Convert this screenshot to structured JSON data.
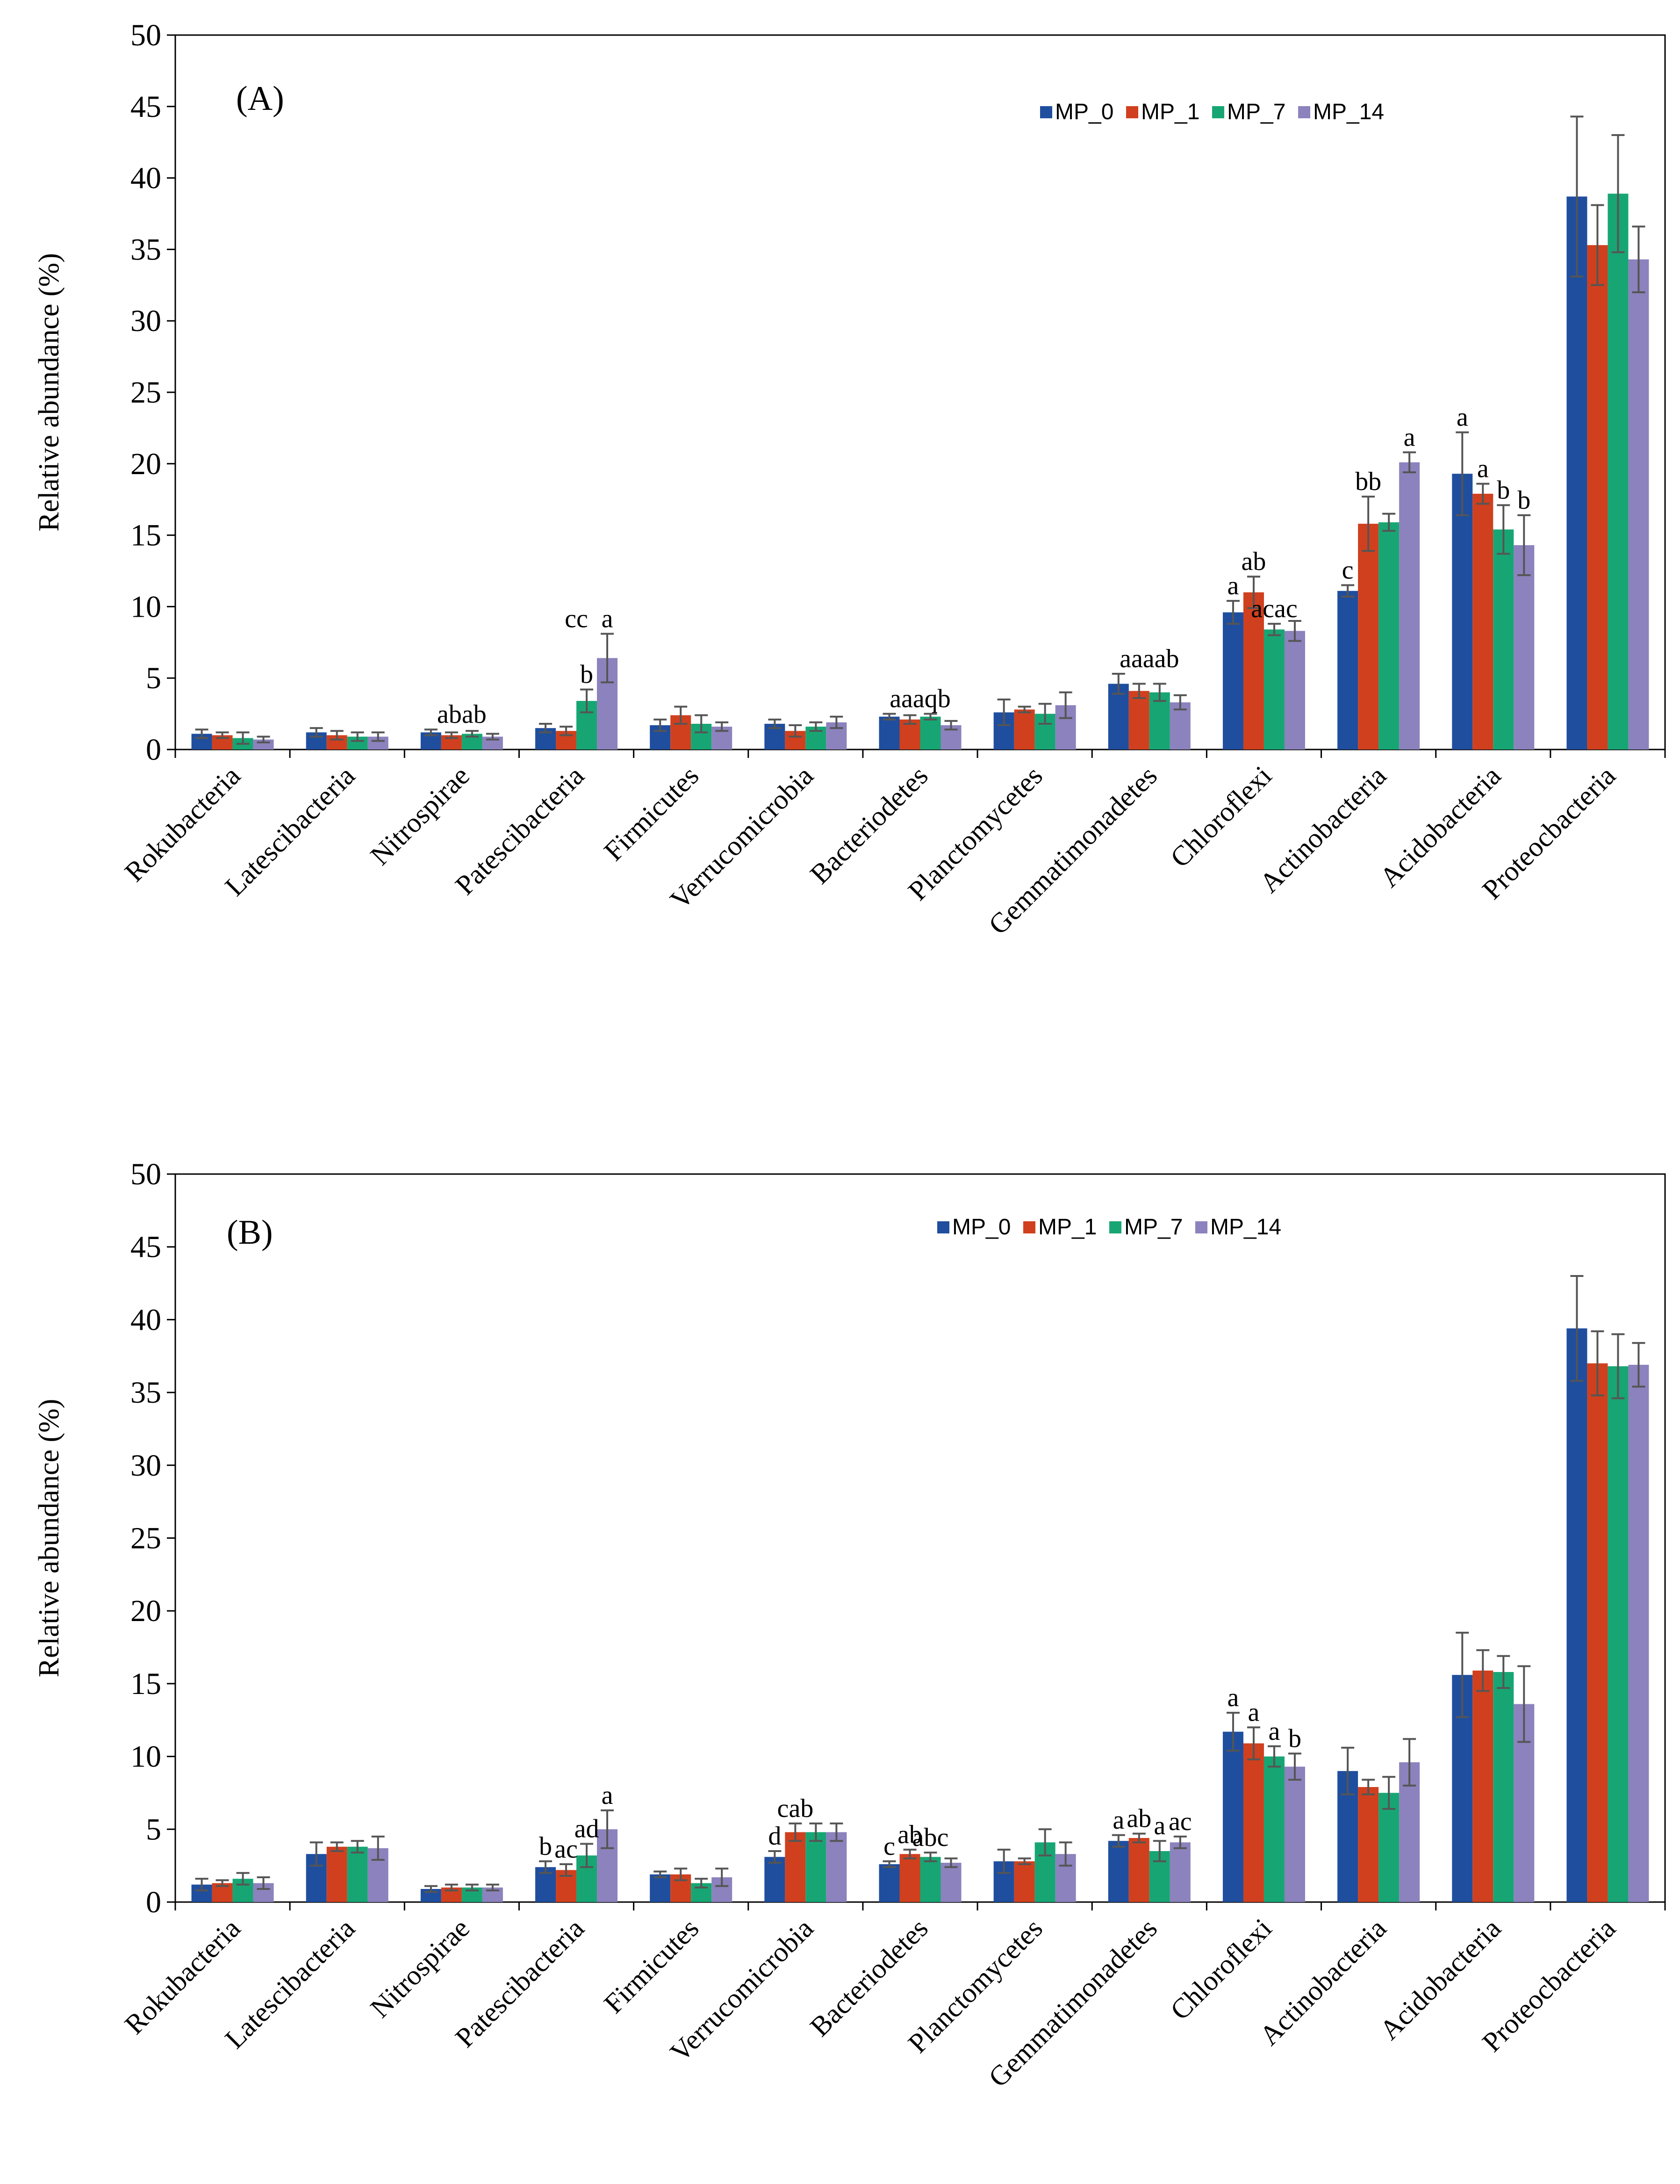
{
  "series_colors": [
    "#1f4e9e",
    "#d0401e",
    "#17a673",
    "#8c82bd"
  ],
  "chart_data": [
    {
      "type": "bar",
      "panel": "(A)",
      "ylabel": "Relative abundance (%)",
      "ylim": [
        0,
        50
      ],
      "yticks": [
        0,
        5,
        10,
        15,
        20,
        25,
        30,
        35,
        40,
        45,
        50
      ],
      "legend_position": "top-right",
      "categories": [
        "Rokubacteria",
        "Latescibacteria",
        "Nitrospirae",
        "Patescibacteria",
        "Firmicutes",
        "Verrucomicrobia",
        "Bacteriodetes",
        "Planctomycetes",
        "Gemmatimonadetes",
        "Chloroflexi",
        "Actinobacteria",
        "Acidobacteria",
        "Proteocbacteria"
      ],
      "series": [
        {
          "name": "MP_0",
          "values": [
            1.1,
            1.2,
            1.2,
            1.5,
            1.7,
            1.8,
            2.3,
            2.6,
            4.6,
            9.6,
            11.1,
            19.3,
            38.7
          ],
          "errors": [
            0.3,
            0.3,
            0.2,
            0.3,
            0.4,
            0.3,
            0.2,
            0.9,
            0.7,
            0.8,
            0.4,
            2.9,
            5.6
          ]
        },
        {
          "name": "MP_1",
          "values": [
            1.0,
            1.0,
            1.0,
            1.3,
            2.4,
            1.3,
            2.1,
            2.8,
            4.1,
            11.0,
            15.8,
            17.9,
            35.3
          ],
          "errors": [
            0.2,
            0.3,
            0.2,
            0.3,
            0.6,
            0.4,
            0.3,
            0.2,
            0.5,
            1.1,
            1.9,
            0.7,
            2.8
          ]
        },
        {
          "name": "MP_7",
          "values": [
            0.8,
            0.9,
            1.1,
            3.4,
            1.8,
            1.6,
            2.3,
            2.5,
            4.0,
            8.4,
            15.9,
            15.4,
            38.9
          ],
          "errors": [
            0.4,
            0.3,
            0.2,
            0.8,
            0.6,
            0.3,
            0.2,
            0.7,
            0.6,
            0.4,
            0.6,
            1.7,
            4.1
          ]
        },
        {
          "name": "MP_14",
          "values": [
            0.7,
            0.9,
            0.9,
            6.4,
            1.6,
            1.9,
            1.7,
            3.1,
            3.3,
            8.3,
            20.1,
            14.3,
            34.3
          ],
          "errors": [
            0.2,
            0.3,
            0.2,
            1.7,
            0.3,
            0.4,
            0.3,
            0.9,
            0.5,
            0.7,
            0.7,
            2.1,
            2.3
          ]
        }
      ],
      "annotations": [
        {
          "category": "Nitrospirae",
          "text": "abab"
        },
        {
          "category": "Patescibacteria",
          "text": "cc"
        },
        {
          "category": "Patescibacteria",
          "series": "MP_7",
          "text": "b"
        },
        {
          "category": "Patescibacteria",
          "series": "MP_14",
          "text": "a"
        },
        {
          "category": "Bacteriodetes",
          "text": "aaaqb"
        },
        {
          "category": "Gemmatimonadetes",
          "text": "aaaab"
        },
        {
          "category": "Chloroflexi",
          "series": "MP_0",
          "text": "a"
        },
        {
          "category": "Chloroflexi",
          "series": "MP_1",
          "text": "ab"
        },
        {
          "category": "Chloroflexi",
          "series": "MP_7",
          "text": "acac"
        },
        {
          "category": "Actinobacteria",
          "series": "MP_0",
          "text": "c"
        },
        {
          "category": "Actinobacteria",
          "series": "MP_1",
          "text": "bb"
        },
        {
          "category": "Actinobacteria",
          "series": "MP_14",
          "text": "a"
        },
        {
          "category": "Acidobacteria",
          "series": "MP_0",
          "text": "a"
        },
        {
          "category": "Acidobacteria",
          "series": "MP_1",
          "text": "a"
        },
        {
          "category": "Acidobacteria",
          "series": "MP_7",
          "text": "b"
        },
        {
          "category": "Acidobacteria",
          "series": "MP_14",
          "text": "b"
        }
      ]
    },
    {
      "type": "bar",
      "panel": "(B)",
      "ylabel": "Relative abundance (%)",
      "ylim": [
        0,
        50
      ],
      "yticks": [
        0,
        5,
        10,
        15,
        20,
        25,
        30,
        35,
        40,
        45,
        50
      ],
      "legend_position": "top-right",
      "categories": [
        "Rokubacteria",
        "Latescibacteria",
        "Nitrospirae",
        "Patescibacteria",
        "Firmicutes",
        "Verrucomicrobia",
        "Bacteriodetes",
        "Planctomycetes",
        "Gemmatimonadetes",
        "Chloroflexi",
        "Actinobacteria",
        "Acidobacteria",
        "Proteocbacteria"
      ],
      "series": [
        {
          "name": "MP_0",
          "values": [
            1.2,
            3.3,
            0.9,
            2.4,
            1.9,
            3.1,
            2.6,
            2.8,
            4.2,
            11.7,
            9.0,
            15.6,
            39.4
          ],
          "errors": [
            0.4,
            0.8,
            0.2,
            0.4,
            0.2,
            0.4,
            0.2,
            0.8,
            0.4,
            1.3,
            1.6,
            2.9,
            3.6
          ]
        },
        {
          "name": "MP_1",
          "values": [
            1.3,
            3.8,
            1.0,
            2.2,
            1.9,
            4.8,
            3.3,
            2.8,
            4.4,
            10.9,
            7.9,
            15.9,
            37.0
          ],
          "errors": [
            0.2,
            0.3,
            0.2,
            0.4,
            0.4,
            0.6,
            0.3,
            0.2,
            0.3,
            1.1,
            0.5,
            1.4,
            2.2
          ]
        },
        {
          "name": "MP_7",
          "values": [
            1.6,
            3.8,
            1.0,
            3.2,
            1.3,
            4.8,
            3.1,
            4.1,
            3.5,
            10.0,
            7.5,
            15.8,
            36.8
          ],
          "errors": [
            0.4,
            0.4,
            0.2,
            0.8,
            0.3,
            0.6,
            0.3,
            0.9,
            0.7,
            0.7,
            1.1,
            1.1,
            2.2
          ]
        },
        {
          "name": "MP_14",
          "values": [
            1.3,
            3.7,
            1.0,
            5.0,
            1.7,
            4.8,
            2.7,
            3.3,
            4.1,
            9.3,
            9.6,
            13.6,
            36.9
          ],
          "errors": [
            0.4,
            0.8,
            0.2,
            1.3,
            0.6,
            0.6,
            0.3,
            0.8,
            0.4,
            0.9,
            1.6,
            2.6,
            1.5
          ]
        }
      ],
      "annotations": [
        {
          "category": "Patescibacteria",
          "series": "MP_0",
          "text": "b"
        },
        {
          "category": "Patescibacteria",
          "series": "MP_1",
          "text": "ac"
        },
        {
          "category": "Patescibacteria",
          "series": "MP_7",
          "text": "ad"
        },
        {
          "category": "Patescibacteria",
          "series": "MP_14",
          "text": "a"
        },
        {
          "category": "Verrucomicrobia",
          "series": "MP_0",
          "text": "d"
        },
        {
          "category": "Verrucomicrobia",
          "series": "MP_1",
          "text": "cab"
        },
        {
          "category": "Bacteriodetes",
          "series": "MP_0",
          "text": "c"
        },
        {
          "category": "Bacteriodetes",
          "series": "MP_1",
          "text": "ab"
        },
        {
          "category": "Bacteriodetes",
          "series": "MP_7",
          "text": "abc"
        },
        {
          "category": "Gemmatimonadetes",
          "series": "MP_0",
          "text": "a"
        },
        {
          "category": "Gemmatimonadetes",
          "series": "MP_1",
          "text": "ab"
        },
        {
          "category": "Gemmatimonadetes",
          "series": "MP_7",
          "text": "a"
        },
        {
          "category": "Gemmatimonadetes",
          "series": "MP_14",
          "text": "ac"
        },
        {
          "category": "Chloroflexi",
          "series": "MP_0",
          "text": "a"
        },
        {
          "category": "Chloroflexi",
          "series": "MP_1",
          "text": "a"
        },
        {
          "category": "Chloroflexi",
          "series": "MP_7",
          "text": "a"
        },
        {
          "category": "Chloroflexi",
          "series": "MP_14",
          "text": "b"
        }
      ]
    }
  ]
}
